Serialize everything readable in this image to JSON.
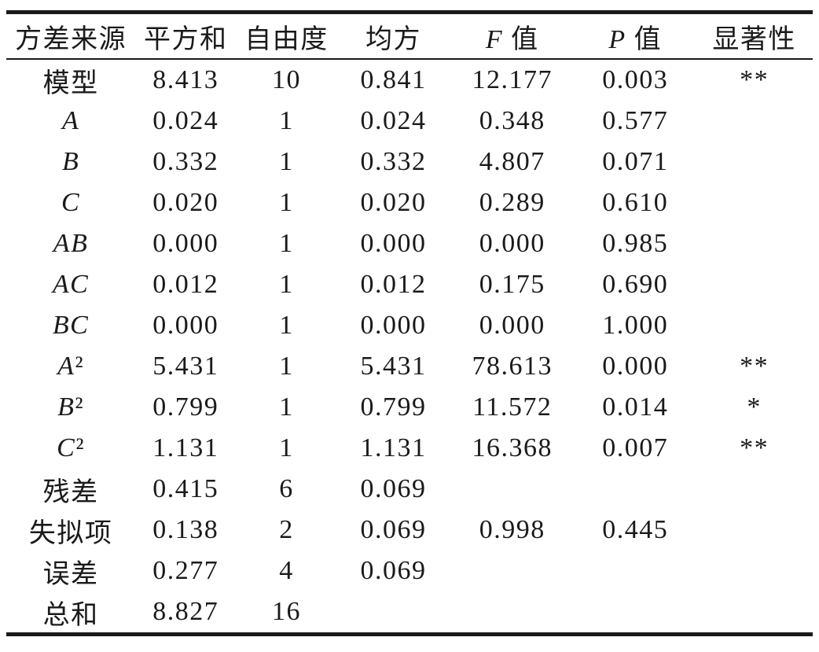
{
  "chart_data": {
    "type": "table",
    "columns": [
      "方差来源",
      "平方和",
      "自由度",
      "均方",
      "F 值",
      "P 值",
      "显著性"
    ],
    "rows": [
      {
        "source": "模型",
        "sum_of_squares": "8.413",
        "df": "10",
        "mean_square": "0.841",
        "f_value": "12.177",
        "p_value": "0.003",
        "significance": "**"
      },
      {
        "source": "A",
        "sum_of_squares": "0.024",
        "df": "1",
        "mean_square": "0.024",
        "f_value": "0.348",
        "p_value": "0.577",
        "significance": ""
      },
      {
        "source": "B",
        "sum_of_squares": "0.332",
        "df": "1",
        "mean_square": "0.332",
        "f_value": "4.807",
        "p_value": "0.071",
        "significance": ""
      },
      {
        "source": "C",
        "sum_of_squares": "0.020",
        "df": "1",
        "mean_square": "0.020",
        "f_value": "0.289",
        "p_value": "0.610",
        "significance": ""
      },
      {
        "source": "AB",
        "sum_of_squares": "0.000",
        "df": "1",
        "mean_square": "0.000",
        "f_value": "0.000",
        "p_value": "0.985",
        "significance": ""
      },
      {
        "source": "AC",
        "sum_of_squares": "0.012",
        "df": "1",
        "mean_square": "0.012",
        "f_value": "0.175",
        "p_value": "0.690",
        "significance": ""
      },
      {
        "source": "BC",
        "sum_of_squares": "0.000",
        "df": "1",
        "mean_square": "0.000",
        "f_value": "0.000",
        "p_value": "1.000",
        "significance": ""
      },
      {
        "source": "A²",
        "sum_of_squares": "5.431",
        "df": "1",
        "mean_square": "5.431",
        "f_value": "78.613",
        "p_value": "0.000",
        "significance": "**"
      },
      {
        "source": "B²",
        "sum_of_squares": "0.799",
        "df": "1",
        "mean_square": "0.799",
        "f_value": "11.572",
        "p_value": "0.014",
        "significance": "*"
      },
      {
        "source": "C²",
        "sum_of_squares": "1.131",
        "df": "1",
        "mean_square": "1.131",
        "f_value": "16.368",
        "p_value": "0.007",
        "significance": "**"
      },
      {
        "source": "残差",
        "sum_of_squares": "0.415",
        "df": "6",
        "mean_square": "0.069",
        "f_value": "",
        "p_value": "",
        "significance": ""
      },
      {
        "source": "失拟项",
        "sum_of_squares": "0.138",
        "df": "2",
        "mean_square": "0.069",
        "f_value": "0.998",
        "p_value": "0.445",
        "significance": ""
      },
      {
        "source": "误差",
        "sum_of_squares": "0.277",
        "df": "4",
        "mean_square": "0.069",
        "f_value": "",
        "p_value": "",
        "significance": ""
      },
      {
        "source": "总和",
        "sum_of_squares": "8.827",
        "df": "16",
        "mean_square": "",
        "f_value": "",
        "p_value": "",
        "significance": ""
      }
    ],
    "style": {
      "text_color": "#1a1a1a",
      "background": "#ffffff",
      "rule_style": "three-line-table"
    }
  }
}
